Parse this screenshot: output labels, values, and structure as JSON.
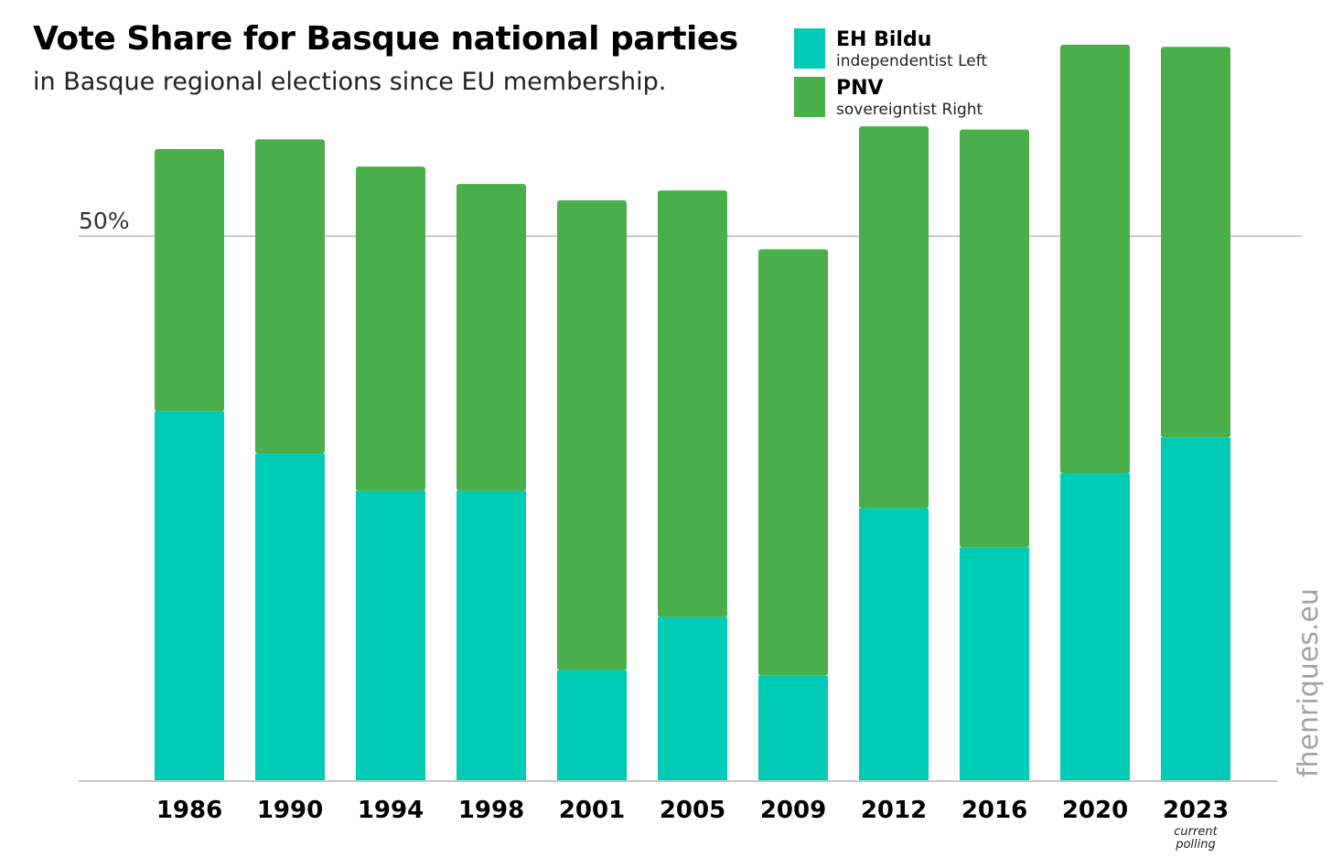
{
  "title": "Vote Share for Basque national parties",
  "subtitle": "in Basque regional elections since EU membership.",
  "watermark": "fhenriques.eu",
  "legend": [
    {
      "name": "EH Bildu",
      "desc": "independentist Left",
      "color": "#00CBB4"
    },
    {
      "name": "PNV",
      "desc": "sovereigntist Right",
      "color": "#4AAE4A"
    }
  ],
  "chart_data": {
    "type": "bar",
    "stacked": true,
    "categories": [
      "1986",
      "1990",
      "1994",
      "1998",
      "2001",
      "2005",
      "2009",
      "2012",
      "2016",
      "2020",
      "2023"
    ],
    "category_notes": {
      "2023": "current polling"
    },
    "series": [
      {
        "name": "EH Bildu",
        "color": "#00CBB4",
        "values": [
          33.9,
          30.0,
          26.6,
          26.6,
          10.1,
          15.0,
          9.6,
          25.0,
          21.4,
          28.2,
          31.5
        ]
      },
      {
        "name": "PNV",
        "color": "#4AAE4A",
        "values": [
          24.1,
          28.9,
          29.8,
          28.2,
          43.2,
          39.2,
          39.2,
          35.1,
          38.4,
          39.4,
          35.9
        ]
      }
    ],
    "ylim": [
      0,
      67
    ],
    "y_reference_lines": [
      {
        "value": 50,
        "label": "50%"
      }
    ],
    "grid": false,
    "legend_position": "top-right"
  }
}
